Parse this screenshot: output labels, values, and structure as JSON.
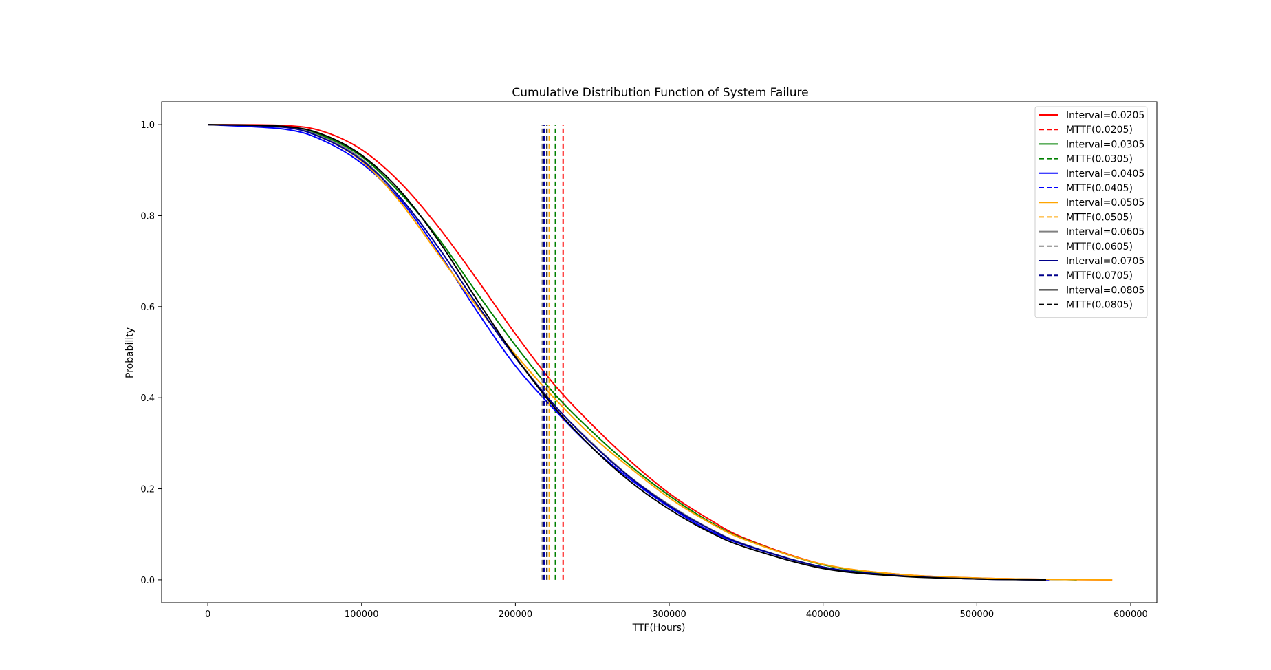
{
  "chart_data": {
    "type": "line",
    "title": "Cumulative Distribution Function of System Failure",
    "xlabel": "TTF(Hours)",
    "ylabel": "Probability",
    "xlim": [
      -30000,
      617000
    ],
    "ylim": [
      -0.05,
      1.05
    ],
    "xticks": [
      0,
      100000,
      200000,
      300000,
      400000,
      500000,
      600000
    ],
    "xtick_labels": [
      "0",
      "100000",
      "200000",
      "300000",
      "400000",
      "500000",
      "600000"
    ],
    "yticks": [
      0.0,
      0.2,
      0.4,
      0.6,
      0.8,
      1.0
    ],
    "ytick_labels": [
      "0.0",
      "0.2",
      "0.4",
      "0.6",
      "0.8",
      "1.0"
    ],
    "grid": false,
    "legend_position": "top-right",
    "series": [
      {
        "name": "Interval=0.0205",
        "color": "#ff0000",
        "style": "solid",
        "x": [
          0,
          50000,
          75000,
          100000,
          125000,
          150000,
          175000,
          200000,
          225000,
          250000,
          275000,
          300000,
          325000,
          350000,
          400000,
          450000,
          500000,
          550000,
          588000
        ],
        "y": [
          1.0,
          0.998,
          0.985,
          0.945,
          0.873,
          0.775,
          0.66,
          0.54,
          0.43,
          0.34,
          0.26,
          0.19,
          0.135,
          0.09,
          0.034,
          0.012,
          0.004,
          0.001,
          0.0
        ]
      },
      {
        "name": "MTTF(0.0205)",
        "color": "#ff0000",
        "style": "dashed",
        "x": [
          231000,
          231000
        ],
        "y": [
          0.0,
          1.0
        ]
      },
      {
        "name": "Interval=0.0305",
        "color": "#008000",
        "style": "solid",
        "x": [
          0,
          50000,
          75000,
          100000,
          125000,
          150000,
          175000,
          200000,
          225000,
          250000,
          275000,
          300000,
          325000,
          350000,
          400000,
          450000,
          500000,
          550000,
          565000
        ],
        "y": [
          1.0,
          0.995,
          0.975,
          0.93,
          0.85,
          0.75,
          0.63,
          0.515,
          0.41,
          0.325,
          0.25,
          0.185,
          0.13,
          0.088,
          0.033,
          0.011,
          0.003,
          0.001,
          0.0
        ]
      },
      {
        "name": "MTTF(0.0305)",
        "color": "#008000",
        "style": "dashed",
        "x": [
          226000,
          226000
        ],
        "y": [
          0.0,
          1.0
        ]
      },
      {
        "name": "Interval=0.0405",
        "color": "#0000ff",
        "style": "solid",
        "x": [
          0,
          50000,
          75000,
          100000,
          125000,
          150000,
          175000,
          200000,
          225000,
          250000,
          275000,
          300000,
          325000,
          350000,
          400000,
          450000,
          500000,
          547000
        ],
        "y": [
          1.0,
          0.99,
          0.965,
          0.915,
          0.835,
          0.72,
          0.59,
          0.47,
          0.375,
          0.29,
          0.22,
          0.16,
          0.11,
          0.075,
          0.028,
          0.009,
          0.002,
          0.0
        ]
      },
      {
        "name": "MTTF(0.0405)",
        "color": "#0000ff",
        "style": "dashed",
        "x": [
          219000,
          219000
        ],
        "y": [
          0.0,
          1.0
        ]
      },
      {
        "name": "Interval=0.0505",
        "color": "#ffa500",
        "style": "solid",
        "x": [
          0,
          50000,
          75000,
          100000,
          125000,
          150000,
          175000,
          200000,
          225000,
          250000,
          275000,
          300000,
          325000,
          350000,
          400000,
          450000,
          500000,
          550000,
          588000
        ],
        "y": [
          1.0,
          0.995,
          0.97,
          0.92,
          0.83,
          0.715,
          0.6,
          0.495,
          0.4,
          0.315,
          0.245,
          0.18,
          0.128,
          0.087,
          0.034,
          0.012,
          0.004,
          0.001,
          0.0
        ]
      },
      {
        "name": "MTTF(0.0505)",
        "color": "#ffa500",
        "style": "dashed",
        "x": [
          222000,
          222000
        ],
        "y": [
          0.0,
          1.0
        ]
      },
      {
        "name": "Interval=0.0605",
        "color": "#808080",
        "style": "solid",
        "x": [
          0,
          50000,
          75000,
          100000,
          125000,
          150000,
          175000,
          200000,
          225000,
          250000,
          275000,
          300000,
          325000,
          350000,
          400000,
          450000,
          500000,
          545000
        ],
        "y": [
          1.0,
          0.995,
          0.972,
          0.925,
          0.84,
          0.73,
          0.605,
          0.49,
          0.385,
          0.3,
          0.225,
          0.165,
          0.115,
          0.077,
          0.028,
          0.009,
          0.002,
          0.0
        ]
      },
      {
        "name": "MTTF(0.0605)",
        "color": "#808080",
        "style": "dashed",
        "x": [
          217500,
          217500
        ],
        "y": [
          0.0,
          1.0
        ]
      },
      {
        "name": "Interval=0.0705",
        "color": "#00008b",
        "style": "solid",
        "x": [
          0,
          50000,
          75000,
          100000,
          125000,
          150000,
          175000,
          200000,
          225000,
          250000,
          275000,
          300000,
          325000,
          350000,
          400000,
          450000,
          500000,
          545000
        ],
        "y": [
          1.0,
          0.994,
          0.97,
          0.922,
          0.84,
          0.73,
          0.605,
          0.488,
          0.385,
          0.298,
          0.224,
          0.163,
          0.114,
          0.076,
          0.028,
          0.009,
          0.002,
          0.0
        ]
      },
      {
        "name": "MTTF(0.0705)",
        "color": "#00008b",
        "style": "dashed",
        "x": [
          218500,
          218500
        ],
        "y": [
          0.0,
          1.0
        ]
      },
      {
        "name": "Interval=0.0805",
        "color": "#000000",
        "style": "solid",
        "x": [
          0,
          50000,
          75000,
          100000,
          125000,
          150000,
          175000,
          200000,
          225000,
          250000,
          275000,
          300000,
          325000,
          350000,
          400000,
          450000,
          500000,
          545000
        ],
        "y": [
          1.0,
          0.996,
          0.978,
          0.933,
          0.855,
          0.745,
          0.615,
          0.49,
          0.38,
          0.29,
          0.215,
          0.155,
          0.107,
          0.071,
          0.025,
          0.008,
          0.002,
          0.0
        ]
      },
      {
        "name": "MTTF(0.0805)",
        "color": "#000000",
        "style": "dashed",
        "x": [
          220500,
          220500
        ],
        "y": [
          0.0,
          1.0
        ]
      }
    ]
  }
}
